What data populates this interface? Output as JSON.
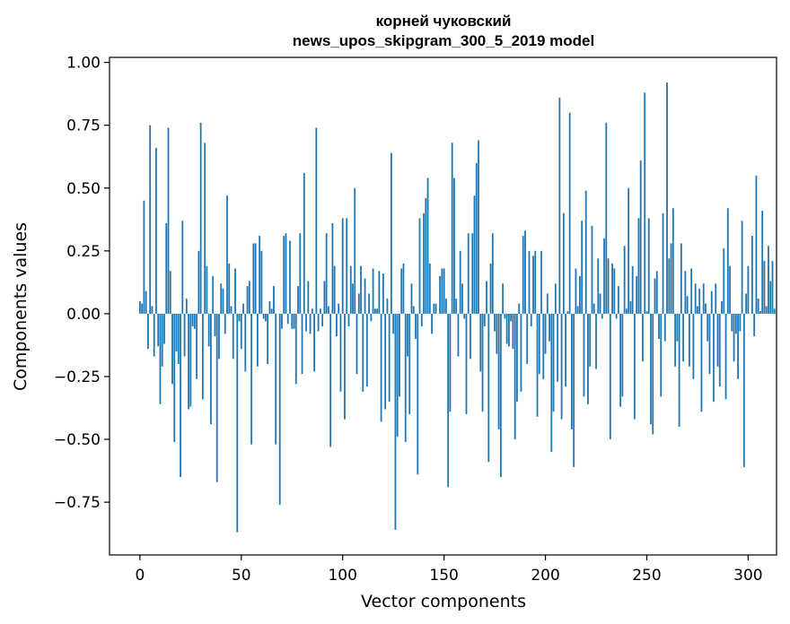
{
  "chart_data": {
    "type": "bar",
    "title": "корней чуковский",
    "subtitle": "news_upos_skipgram_300_5_2019 model",
    "xlabel": "Vector components",
    "ylabel": "Components values",
    "xlim": [
      -15,
      314
    ],
    "ylim": [
      -0.96,
      1.02
    ],
    "xticks": [
      0,
      50,
      100,
      150,
      200,
      250,
      300
    ],
    "yticks": [
      -0.75,
      -0.5,
      -0.25,
      0.0,
      0.25,
      0.5,
      0.75,
      1.0
    ],
    "ytick_labels": [
      "−0.75",
      "−0.50",
      "−0.25",
      "0.00",
      "0.25",
      "0.50",
      "0.75",
      "1.00"
    ],
    "xtick_labels": [
      "0",
      "50",
      "100",
      "150",
      "200",
      "250",
      "300"
    ],
    "grid": false,
    "bar_color": "#1f77b4",
    "values": [
      0.05,
      0.04,
      0.45,
      0.09,
      -0.14,
      0.75,
      0.03,
      -0.17,
      0.66,
      -0.13,
      -0.36,
      -0.21,
      -0.12,
      0.36,
      0.74,
      0.17,
      -0.28,
      -0.51,
      -0.15,
      -0.2,
      -0.65,
      0.37,
      -0.17,
      0.06,
      -0.38,
      -0.37,
      -0.05,
      -0.06,
      -0.26,
      0.25,
      0.76,
      -0.34,
      0.68,
      0.19,
      -0.13,
      -0.44,
      0.15,
      -0.09,
      -0.67,
      -0.18,
      0.12,
      0.1,
      -0.08,
      0.47,
      0.2,
      0.03,
      -0.18,
      0.18,
      -0.87,
      -0.03,
      -0.14,
      0.04,
      -0.23,
      0.11,
      0.13,
      -0.52,
      0.28,
      0.28,
      -0.21,
      0.31,
      0.25,
      -0.02,
      -0.03,
      -0.2,
      0.05,
      0.02,
      0.11,
      -0.52,
      0.0,
      -0.76,
      -0.06,
      0.31,
      0.32,
      -0.04,
      0.29,
      -0.06,
      -0.06,
      -0.28,
      0.11,
      0.32,
      -0.24,
      0.56,
      -0.07,
      0.13,
      -0.08,
      0.02,
      -0.23,
      0.74,
      -0.07,
      0.02,
      -0.05,
      0.13,
      0.32,
      0.03,
      -0.53,
      0.36,
      0.19,
      -0.09,
      0.04,
      -0.31,
      0.38,
      -0.42,
      0.38,
      -0.05,
      0.19,
      0.12,
      0.5,
      -0.24,
      0.08,
      0.19,
      -0.31,
      0.14,
      -0.29,
      0.08,
      -0.03,
      0.18,
      0.02,
      0.02,
      0.17,
      -0.43,
      0.16,
      -0.38,
      0.06,
      -0.35,
      0.64,
      -0.08,
      -0.86,
      -0.49,
      -0.33,
      0.18,
      0.2,
      -0.51,
      -0.17,
      -0.4,
      0.12,
      0.03,
      -0.1,
      -0.64,
      0.38,
      -0.05,
      0.4,
      0.46,
      0.54,
      0.2,
      -0.08,
      0.04,
      0.04,
      0.0,
      0.15,
      0.18,
      0.18,
      0.06,
      -0.69,
      -0.39,
      0.68,
      0.54,
      0.06,
      -0.17,
      0.25,
      0.12,
      -0.02,
      -0.4,
      0.32,
      -0.18,
      0.32,
      0.47,
      0.6,
      0.69,
      -0.23,
      -0.39,
      -0.05,
      0.13,
      -0.59,
      0.2,
      0.32,
      -0.07,
      -0.16,
      -0.46,
      -0.65,
      0.12,
      -0.02,
      -0.12,
      -0.13,
      -0.03,
      -0.14,
      -0.5,
      -0.35,
      0.04,
      -0.31,
      0.31,
      0.33,
      -0.2,
      0.25,
      -0.05,
      0.23,
      0.25,
      -0.41,
      -0.24,
      0.25,
      -0.26,
      -0.16,
      0.08,
      -0.11,
      -0.55,
      -0.39,
      0.12,
      -0.27,
      0.86,
      -0.42,
      0.4,
      -0.29,
      0.01,
      0.8,
      -0.46,
      -0.61,
      0.18,
      0.03,
      0.15,
      0.37,
      -0.33,
      0.49,
      -0.36,
      -0.21,
      0.35,
      0.04,
      -0.22,
      0.22,
      0.08,
      -0.02,
      0.3,
      0.76,
      0.22,
      -0.5,
      0.2,
      0.18,
      -0.02,
      0.11,
      -0.37,
      -0.33,
      0.27,
      0.02,
      0.5,
      0.05,
      0.19,
      -0.42,
      0.15,
      0.38,
      0.61,
      -0.19,
      0.88,
      0.01,
      0.38,
      -0.44,
      -0.48,
      0.14,
      0.17,
      -0.1,
      -0.33,
      0.4,
      -0.11,
      0.92,
      0.22,
      0.28,
      0.42,
      -0.21,
      -0.11,
      -0.45,
      0.28,
      -0.19,
      0.17,
      0.07,
      -0.21,
      0.18,
      -0.26,
      0.12,
      0.03,
      0.1,
      -0.39,
      0.12,
      0.04,
      -0.11,
      -0.24,
      0.09,
      -0.35,
      0.12,
      -0.21,
      -0.29,
      0.05,
      0.26,
      -0.34,
      0.42,
      0.19,
      -0.07,
      -0.19,
      -0.08,
      -0.26,
      -0.07,
      0.37,
      -0.61,
      0.08,
      0.19,
      0.0,
      0.31,
      -0.09,
      0.55,
      0.06,
      0.01,
      0.41,
      0.21,
      0.03,
      0.27,
      0.13,
      0.21,
      0.02
    ]
  }
}
